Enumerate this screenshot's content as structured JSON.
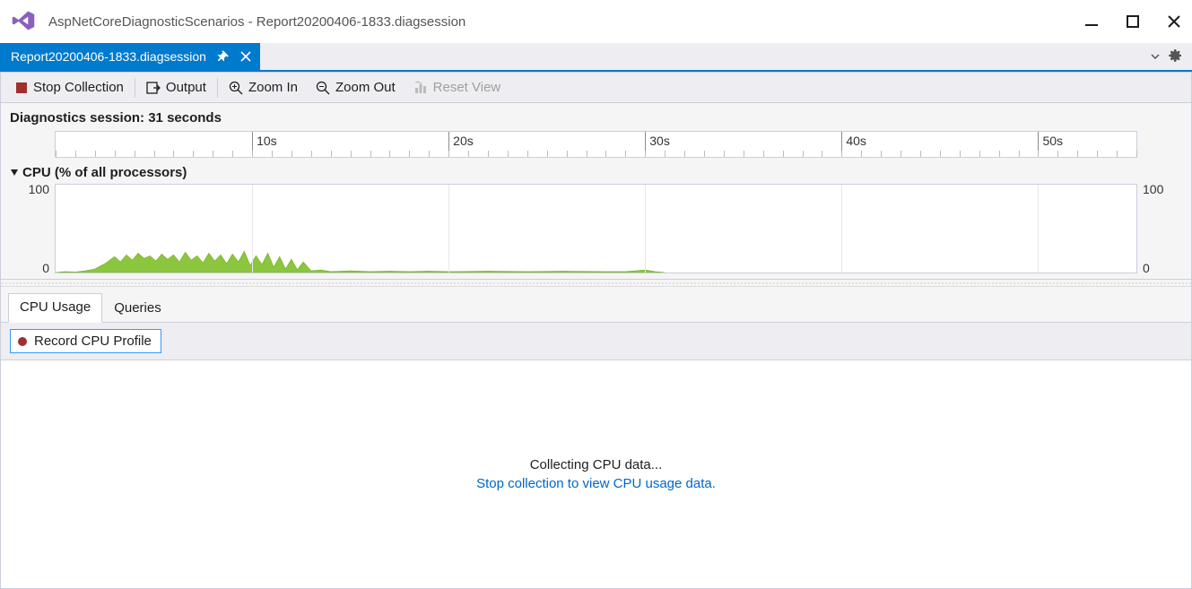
{
  "window": {
    "title": "AspNetCoreDiagnosticScenarios - Report20200406-1833.diagsession"
  },
  "tab": {
    "label": "Report20200406-1833.diagsession"
  },
  "toolbar": {
    "stop_collection": "Stop Collection",
    "output": "Output",
    "zoom_in": "Zoom In",
    "zoom_out": "Zoom Out",
    "reset_view": "Reset View"
  },
  "session": {
    "label": "Diagnostics session: 31 seconds",
    "duration_seconds": 31
  },
  "ruler": {
    "range_seconds": 55,
    "major_ticks": [
      {
        "t": 10,
        "label": "10s"
      },
      {
        "t": 20,
        "label": "20s"
      },
      {
        "t": 30,
        "label": "30s"
      },
      {
        "t": 40,
        "label": "40s"
      },
      {
        "t": 50,
        "label": "50s"
      }
    ],
    "minor_step": 1
  },
  "cpu_chart": {
    "title": "CPU (% of all processors)",
    "type": "area",
    "ylim": [
      0,
      100
    ],
    "ytick_top": "100",
    "ytick_bot": "0",
    "background_color": "#ffffff",
    "grid_color": "#e8e8e8",
    "series_color": "#8cc63f",
    "series_stroke": "#7ab52e",
    "grid_seconds": [
      10,
      20,
      30,
      40,
      50
    ],
    "points": [
      [
        0,
        0
      ],
      [
        0.5,
        1
      ],
      [
        1,
        0.5
      ],
      [
        1.5,
        2
      ],
      [
        2,
        4
      ],
      [
        2.5,
        10
      ],
      [
        3,
        18
      ],
      [
        3.3,
        12
      ],
      [
        3.6,
        20
      ],
      [
        3.9,
        14
      ],
      [
        4.2,
        22
      ],
      [
        4.5,
        16
      ],
      [
        4.8,
        19
      ],
      [
        5.1,
        13
      ],
      [
        5.4,
        21
      ],
      [
        5.7,
        15
      ],
      [
        6.0,
        20
      ],
      [
        6.3,
        12
      ],
      [
        6.6,
        23
      ],
      [
        6.9,
        14
      ],
      [
        7.2,
        19
      ],
      [
        7.5,
        11
      ],
      [
        7.8,
        22
      ],
      [
        8.1,
        13
      ],
      [
        8.4,
        20
      ],
      [
        8.7,
        10
      ],
      [
        9.0,
        21
      ],
      [
        9.3,
        12
      ],
      [
        9.6,
        24
      ],
      [
        9.9,
        8
      ],
      [
        10.2,
        19
      ],
      [
        10.5,
        9
      ],
      [
        10.8,
        22
      ],
      [
        11.1,
        6
      ],
      [
        11.4,
        18
      ],
      [
        11.7,
        4
      ],
      [
        12.0,
        15
      ],
      [
        12.3,
        3
      ],
      [
        12.6,
        12
      ],
      [
        13.0,
        2
      ],
      [
        13.5,
        3
      ],
      [
        14,
        1
      ],
      [
        15,
        2
      ],
      [
        16,
        1
      ],
      [
        17,
        1.5
      ],
      [
        18,
        1
      ],
      [
        19,
        1.5
      ],
      [
        20,
        1
      ],
      [
        22,
        1.5
      ],
      [
        24,
        1
      ],
      [
        26,
        1.5
      ],
      [
        28,
        1
      ],
      [
        29,
        1
      ],
      [
        29.5,
        2
      ],
      [
        30,
        3
      ],
      [
        30.5,
        1
      ],
      [
        31,
        0
      ]
    ]
  },
  "sub_tabs": {
    "items": [
      {
        "label": "CPU Usage",
        "active": true
      },
      {
        "label": "Queries",
        "active": false
      }
    ]
  },
  "record_button": {
    "label": "Record CPU Profile"
  },
  "messages": {
    "collecting": "Collecting CPU data...",
    "hint": "Stop collection to view CPU usage data."
  },
  "colors": {
    "accent": "#007acc",
    "vs_purple": "#68217a",
    "toolbar_bg": "#eeeef2",
    "border": "#cccedb",
    "link": "#0066cc"
  }
}
